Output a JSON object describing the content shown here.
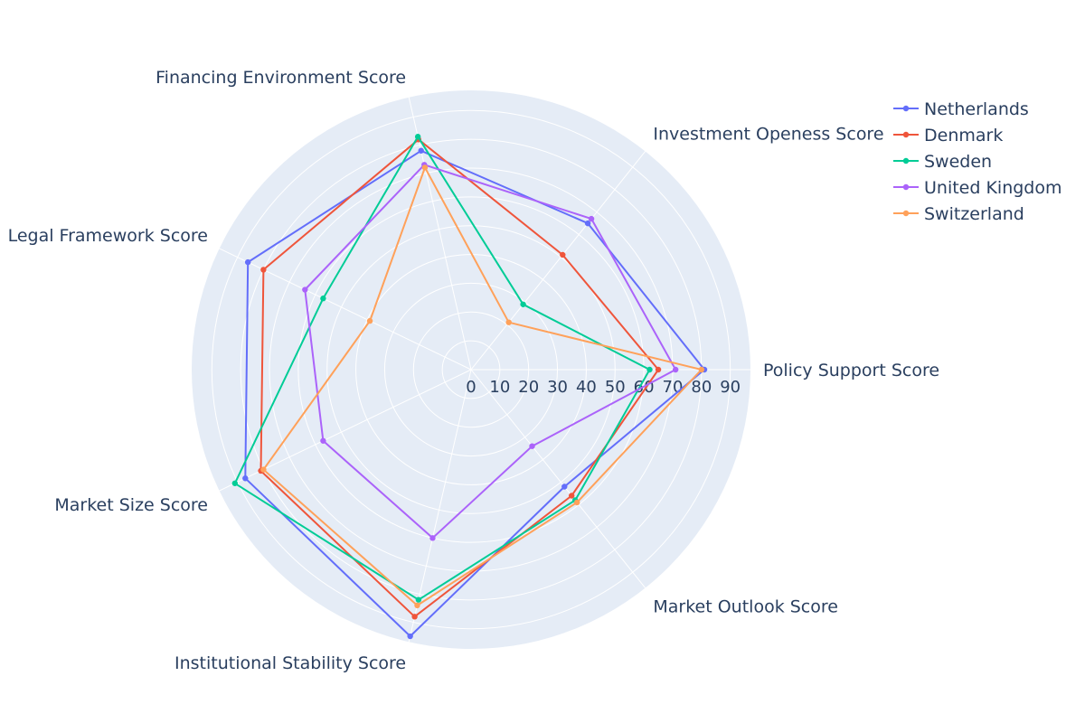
{
  "chart_data": {
    "type": "radar",
    "axes": [
      "Policy Support Score",
      "Market Outlook Score",
      "Institutional Stability Score",
      "Market Size Score",
      "Legal Framework Score",
      "Financing Environment Score",
      "Investment Openess Score"
    ],
    "radial_range": [
      0,
      97
    ],
    "radial_ticks": [
      0,
      10,
      20,
      30,
      40,
      50,
      60,
      70,
      80,
      90
    ],
    "grid": true,
    "legend_position": "top-right",
    "series": [
      {
        "name": "Netherlands",
        "color": "#636efa",
        "values": [
          81,
          52,
          95,
          87,
          86,
          78,
          65
        ]
      },
      {
        "name": "Denmark",
        "color": "#EF553B",
        "values": [
          65,
          56,
          88,
          81,
          80,
          82,
          51
        ]
      },
      {
        "name": "Sweden",
        "color": "#00cc96",
        "values": [
          62,
          58,
          82,
          91,
          57,
          83,
          29
        ]
      },
      {
        "name": "United Kingdom",
        "color": "#ab63fa",
        "values": [
          71,
          34,
          60,
          57,
          64,
          73,
          67
        ]
      },
      {
        "name": "Switzerland",
        "color": "#FFA15A",
        "values": [
          80,
          59,
          84,
          80,
          39,
          72,
          21
        ]
      }
    ]
  }
}
